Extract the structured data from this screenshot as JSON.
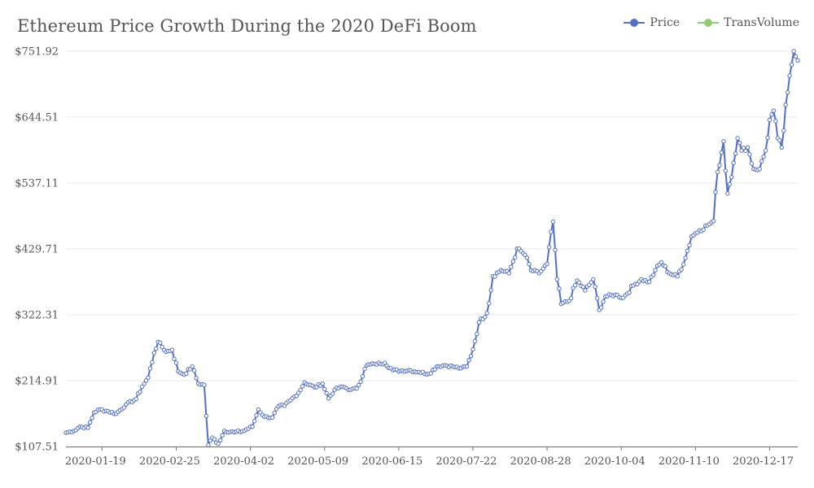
{
  "chart_data": {
    "type": "line",
    "title": "Ethereum Price Growth During the 2020 DeFi Boom",
    "xlabel": "",
    "ylabel": "",
    "ylim": [
      107.51,
      751.92
    ],
    "yticks": [
      "$107.51",
      "$214.91",
      "$322.31",
      "$429.71",
      "$537.11",
      "$644.51",
      "$751.92"
    ],
    "ytick_values": [
      107.51,
      214.91,
      322.31,
      429.71,
      537.11,
      644.51,
      751.92
    ],
    "xticks": [
      "2020-01-19",
      "2020-02-25",
      "2020-04-02",
      "2020-05-09",
      "2020-06-15",
      "2020-07-22",
      "2020-08-28",
      "2020-10-04",
      "2020-11-10",
      "2020-12-17"
    ],
    "x_start": "2020-01-01",
    "x_end": "2020-12-31",
    "grid": true,
    "legend_position": "top-right",
    "series": [
      {
        "name": "Price",
        "color": "#5470c6",
        "anchors": [
          [
            "2020-01-01",
            130
          ],
          [
            "2020-01-05",
            133
          ],
          [
            "2020-01-08",
            140
          ],
          [
            "2020-01-12",
            138
          ],
          [
            "2020-01-15",
            163
          ],
          [
            "2020-01-18",
            168
          ],
          [
            "2020-01-22",
            165
          ],
          [
            "2020-01-26",
            161
          ],
          [
            "2020-01-31",
            176
          ],
          [
            "2020-02-05",
            185
          ],
          [
            "2020-02-08",
            205
          ],
          [
            "2020-02-11",
            220
          ],
          [
            "2020-02-14",
            260
          ],
          [
            "2020-02-16",
            278
          ],
          [
            "2020-02-20",
            262
          ],
          [
            "2020-02-23",
            265
          ],
          [
            "2020-02-26",
            230
          ],
          [
            "2020-02-29",
            225
          ],
          [
            "2020-03-04",
            238
          ],
          [
            "2020-03-07",
            210
          ],
          [
            "2020-03-10",
            208
          ],
          [
            "2020-03-12",
            110
          ],
          [
            "2020-03-14",
            122
          ],
          [
            "2020-03-17",
            112
          ],
          [
            "2020-03-20",
            133
          ],
          [
            "2020-03-25",
            131
          ],
          [
            "2020-03-29",
            132
          ],
          [
            "2020-04-03",
            140
          ],
          [
            "2020-04-06",
            168
          ],
          [
            "2020-04-09",
            156
          ],
          [
            "2020-04-13",
            155
          ],
          [
            "2020-04-16",
            173
          ],
          [
            "2020-04-19",
            174
          ],
          [
            "2020-04-22",
            183
          ],
          [
            "2020-04-26",
            195
          ],
          [
            "2020-04-29",
            212
          ],
          [
            "2020-05-04",
            204
          ],
          [
            "2020-05-08",
            210
          ],
          [
            "2020-05-11",
            186
          ],
          [
            "2020-05-14",
            200
          ],
          [
            "2020-05-18",
            205
          ],
          [
            "2020-05-22",
            200
          ],
          [
            "2020-05-25",
            202
          ],
          [
            "2020-05-30",
            240
          ],
          [
            "2020-06-03",
            242
          ],
          [
            "2020-06-08",
            244
          ],
          [
            "2020-06-12",
            232
          ],
          [
            "2020-06-16",
            231
          ],
          [
            "2020-06-20",
            232
          ],
          [
            "2020-06-25",
            229
          ],
          [
            "2020-06-30",
            226
          ],
          [
            "2020-07-04",
            238
          ],
          [
            "2020-07-08",
            240
          ],
          [
            "2020-07-12",
            238
          ],
          [
            "2020-07-16",
            235
          ],
          [
            "2020-07-19",
            238
          ],
          [
            "2020-07-22",
            266
          ],
          [
            "2020-07-25",
            310
          ],
          [
            "2020-07-29",
            325
          ],
          [
            "2020-08-01",
            385
          ],
          [
            "2020-08-05",
            395
          ],
          [
            "2020-08-09",
            390
          ],
          [
            "2020-08-13",
            430
          ],
          [
            "2020-08-17",
            420
          ],
          [
            "2020-08-20",
            395
          ],
          [
            "2020-08-24",
            390
          ],
          [
            "2020-08-28",
            405
          ],
          [
            "2020-08-31",
            474
          ],
          [
            "2020-09-02",
            380
          ],
          [
            "2020-09-04",
            340
          ],
          [
            "2020-09-08",
            345
          ],
          [
            "2020-09-12",
            378
          ],
          [
            "2020-09-16",
            362
          ],
          [
            "2020-09-20",
            380
          ],
          [
            "2020-09-23",
            330
          ],
          [
            "2020-09-26",
            352
          ],
          [
            "2020-10-01",
            355
          ],
          [
            "2020-10-05",
            350
          ],
          [
            "2020-10-10",
            370
          ],
          [
            "2020-10-14",
            380
          ],
          [
            "2020-10-18",
            376
          ],
          [
            "2020-10-21",
            395
          ],
          [
            "2020-10-24",
            408
          ],
          [
            "2020-10-28",
            390
          ],
          [
            "2020-11-01",
            385
          ],
          [
            "2020-11-05",
            415
          ],
          [
            "2020-11-08",
            450
          ],
          [
            "2020-11-12",
            460
          ],
          [
            "2020-11-16",
            468
          ],
          [
            "2020-11-19",
            475
          ],
          [
            "2020-11-21",
            555
          ],
          [
            "2020-11-24",
            605
          ],
          [
            "2020-11-26",
            520
          ],
          [
            "2020-11-29",
            570
          ],
          [
            "2020-12-01",
            610
          ],
          [
            "2020-12-03",
            590
          ],
          [
            "2020-12-06",
            595
          ],
          [
            "2020-12-09",
            560
          ],
          [
            "2020-12-12",
            560
          ],
          [
            "2020-12-15",
            590
          ],
          [
            "2020-12-17",
            640
          ],
          [
            "2020-12-19",
            655
          ],
          [
            "2020-12-21",
            610
          ],
          [
            "2020-12-23",
            595
          ],
          [
            "2020-12-26",
            685
          ],
          [
            "2020-12-28",
            730
          ],
          [
            "2020-12-29",
            751.92
          ],
          [
            "2020-12-31",
            737
          ]
        ]
      },
      {
        "name": "TransVolume",
        "color": "#91cc75"
      }
    ]
  }
}
